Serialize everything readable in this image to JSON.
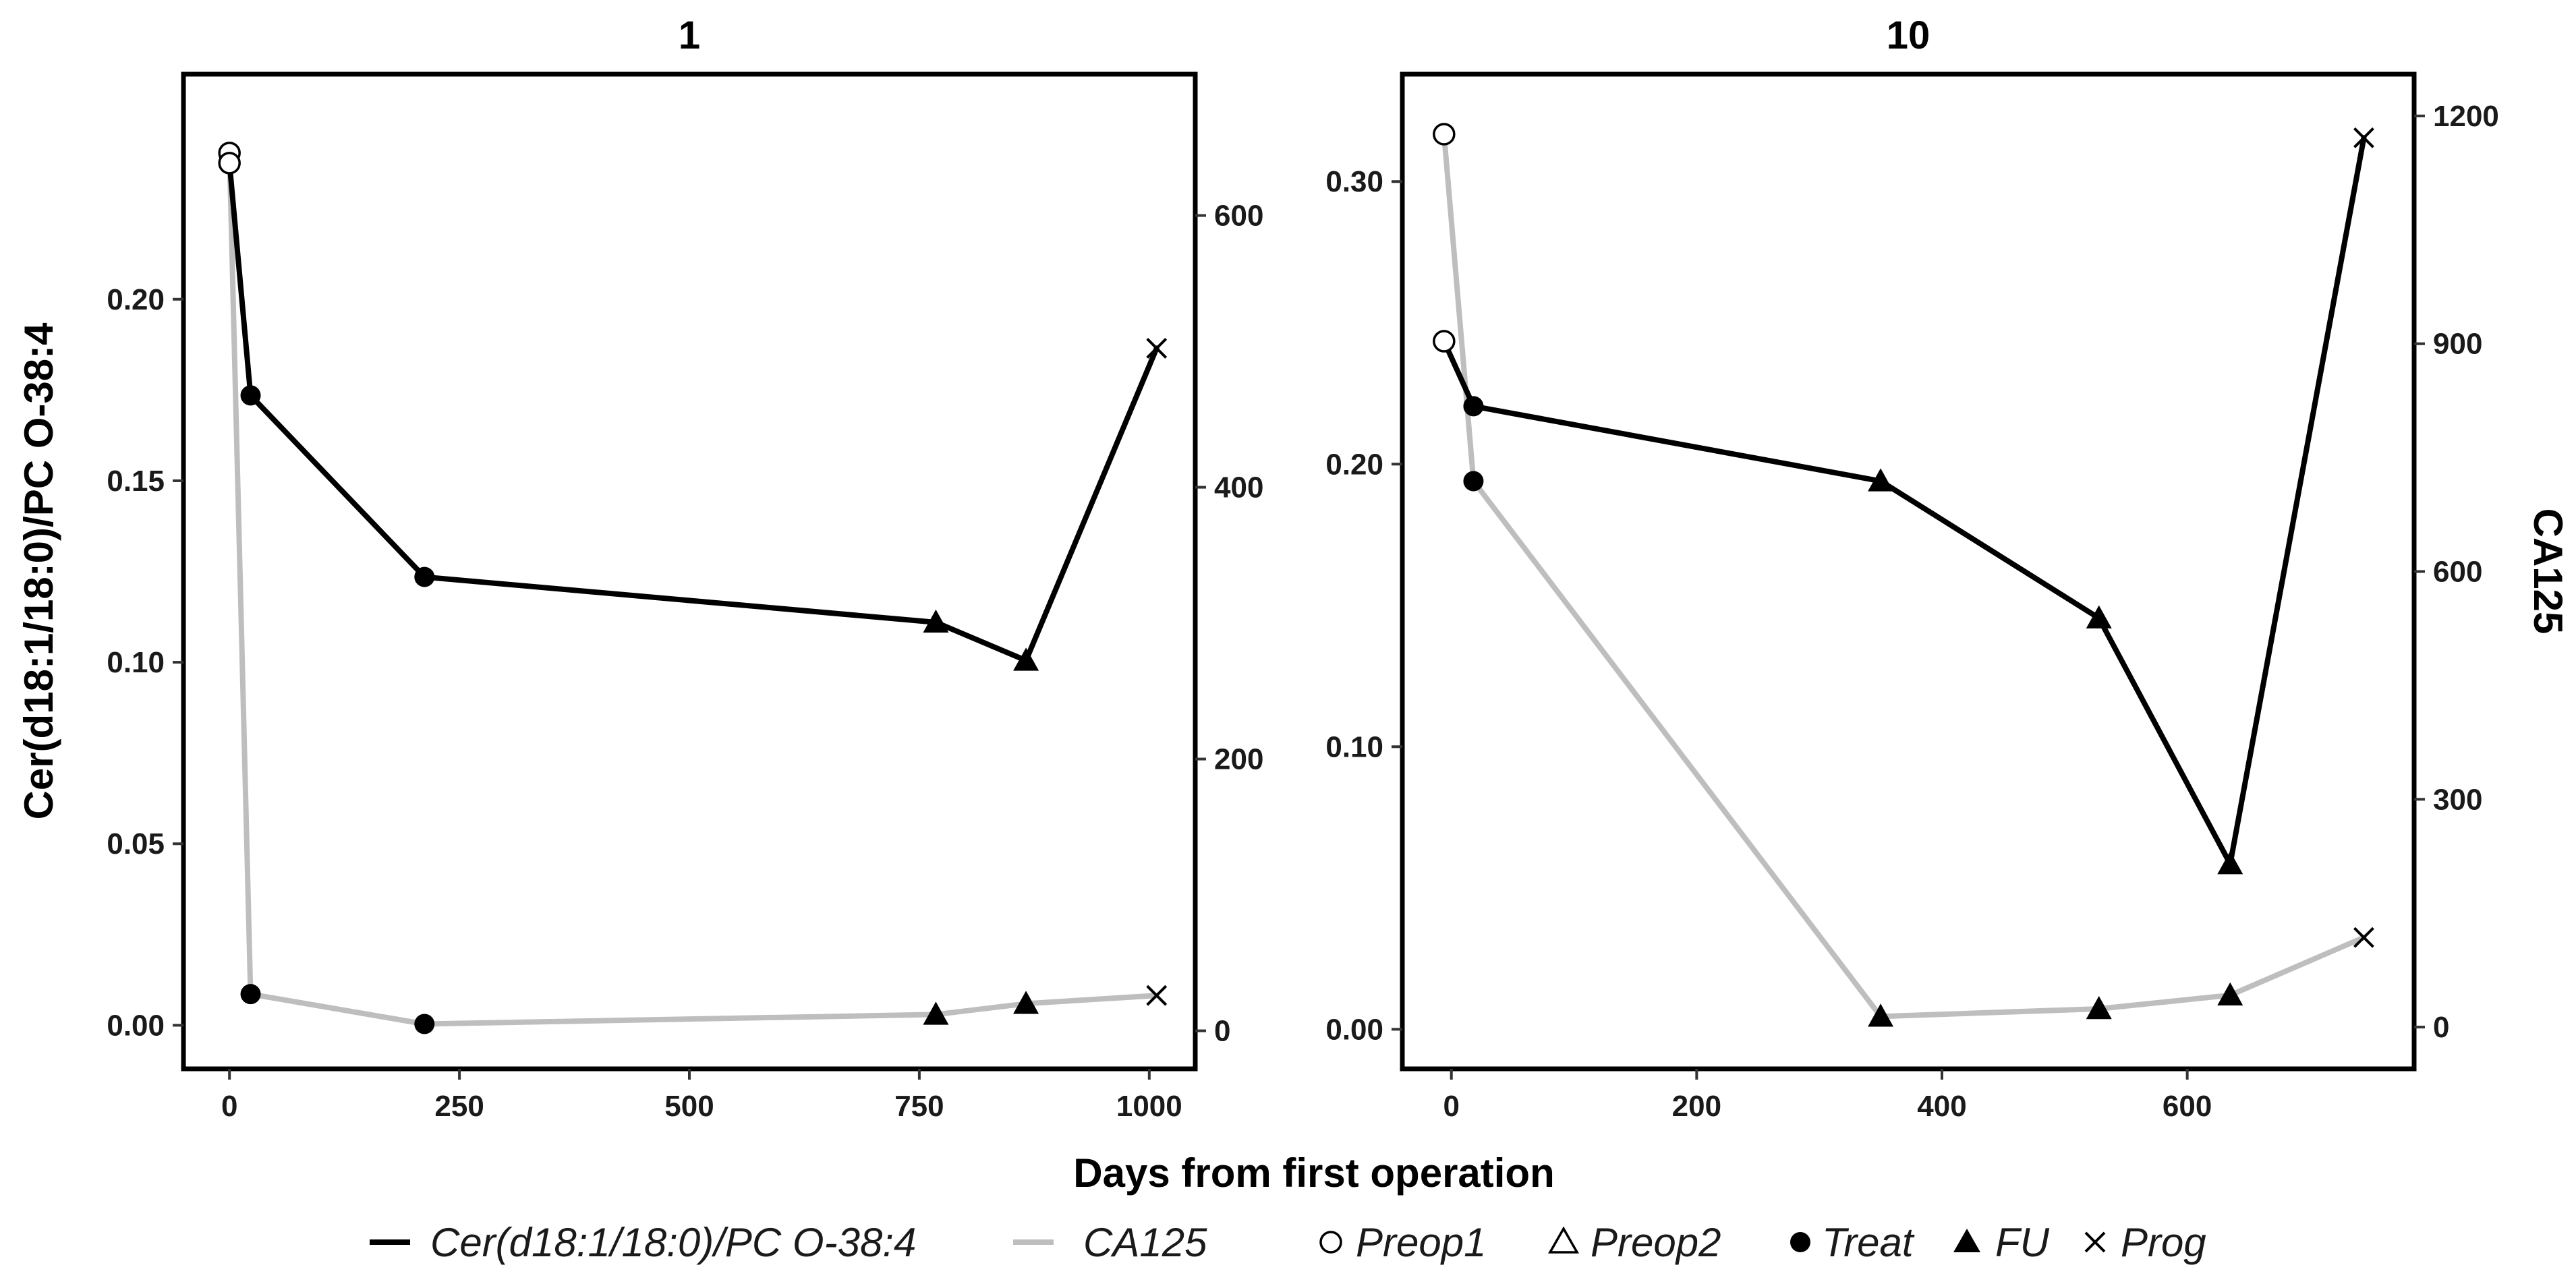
{
  "chart_data": {
    "type": "line",
    "xlabel": "Days from first operation",
    "shared_legend": {
      "lines": [
        {
          "name": "Cer(d18:1/18:0)/PC O-38:4",
          "color": "#000000"
        },
        {
          "name": "CA125",
          "color": "#bebebe"
        }
      ],
      "shapes": [
        {
          "name": "Preop1",
          "marker": "open-circle"
        },
        {
          "name": "Preop2",
          "marker": "open-triangle"
        },
        {
          "name": "Treat",
          "marker": "filled-circle"
        },
        {
          "name": "FU",
          "marker": "filled-triangle"
        },
        {
          "name": "Prog",
          "marker": "cross"
        }
      ]
    },
    "panels": [
      {
        "title": "1",
        "ylabel_left": "Cer(d18:1/18:0)/PC O-38:4",
        "ylabel_right": "",
        "xlim": [
          -50,
          1050
        ],
        "x_ticks": [
          0,
          250,
          500,
          750,
          1000
        ],
        "x_tick_labels": [
          "0",
          "250",
          "500",
          "750",
          "1000"
        ],
        "ylim_left": [
          -0.012,
          0.262
        ],
        "y_left_ticks": [
          0.0,
          0.05,
          0.1,
          0.15,
          0.2
        ],
        "y_left_tick_labels": [
          "0.00",
          "0.05",
          "0.10",
          "0.15",
          "0.20"
        ],
        "ylim_right": [
          -28,
          704
        ],
        "y_right_ticks": [
          0,
          200,
          400,
          600
        ],
        "y_right_tick_labels": [
          "0",
          "200",
          "400",
          "600"
        ],
        "series": [
          {
            "name": "Cer(d18:1/18:0)/PC O-38:4",
            "axis": "left",
            "color": "#000000",
            "points": [
              {
                "x": 0,
                "y": 0.2375,
                "shape": "Preop1"
              },
              {
                "x": 23,
                "y": 0.1735,
                "shape": "Treat"
              },
              {
                "x": 212,
                "y": 0.1235,
                "shape": "Treat"
              },
              {
                "x": 768,
                "y": 0.111,
                "shape": "FU"
              },
              {
                "x": 866,
                "y": 0.1005,
                "shape": "FU"
              },
              {
                "x": 1008,
                "y": 0.1865,
                "shape": "Prog"
              }
            ]
          },
          {
            "name": "CA125",
            "axis": "right",
            "color": "#bebebe",
            "points": [
              {
                "x": 0,
                "y": 646,
                "shape": "Preop1"
              },
              {
                "x": 23,
                "y": 27,
                "shape": "Treat"
              },
              {
                "x": 212,
                "y": 5,
                "shape": "Treat"
              },
              {
                "x": 768,
                "y": 12,
                "shape": "FU"
              },
              {
                "x": 866,
                "y": 20,
                "shape": "FU"
              },
              {
                "x": 1008,
                "y": 26,
                "shape": "Prog"
              }
            ]
          }
        ]
      },
      {
        "title": "10",
        "ylabel_left": "",
        "ylabel_right": "CA125",
        "xlim": [
          -40,
          785
        ],
        "x_ticks": [
          0,
          200,
          400,
          600
        ],
        "x_tick_labels": [
          "0",
          "200",
          "400",
          "600"
        ],
        "ylim_left": [
          -0.014,
          0.338
        ],
        "y_left_ticks": [
          0.0,
          0.1,
          0.2,
          0.3
        ],
        "y_left_tick_labels": [
          "0.00",
          "0.10",
          "0.20",
          "0.30"
        ],
        "ylim_right": [
          -55,
          1255
        ],
        "y_right_ticks": [
          0,
          300,
          600,
          900,
          1200
        ],
        "y_right_tick_labels": [
          "0",
          "300",
          "600",
          "900",
          "1200"
        ],
        "series": [
          {
            "name": "Cer(d18:1/18:0)/PC O-38:4",
            "axis": "left",
            "color": "#000000",
            "points": [
              {
                "x": -6,
                "y": 0.2435,
                "shape": "Preop1"
              },
              {
                "x": 18,
                "y": 0.2205,
                "shape": "Treat"
              },
              {
                "x": 350,
                "y": 0.194,
                "shape": "FU"
              },
              {
                "x": 528,
                "y": 0.1455,
                "shape": "FU"
              },
              {
                "x": 635,
                "y": 0.0585,
                "shape": "FU"
              },
              {
                "x": 744,
                "y": 0.3155,
                "shape": "Prog"
              }
            ]
          },
          {
            "name": "CA125",
            "axis": "right",
            "color": "#bebebe",
            "points": [
              {
                "x": -6,
                "y": 1176,
                "shape": "Preop1"
              },
              {
                "x": 18,
                "y": 719,
                "shape": "Treat"
              },
              {
                "x": 350,
                "y": 14,
                "shape": "FU"
              },
              {
                "x": 528,
                "y": 24,
                "shape": "FU"
              },
              {
                "x": 635,
                "y": 42,
                "shape": "FU"
              },
              {
                "x": 744,
                "y": 118,
                "shape": "Prog"
              }
            ]
          }
        ]
      }
    ]
  }
}
